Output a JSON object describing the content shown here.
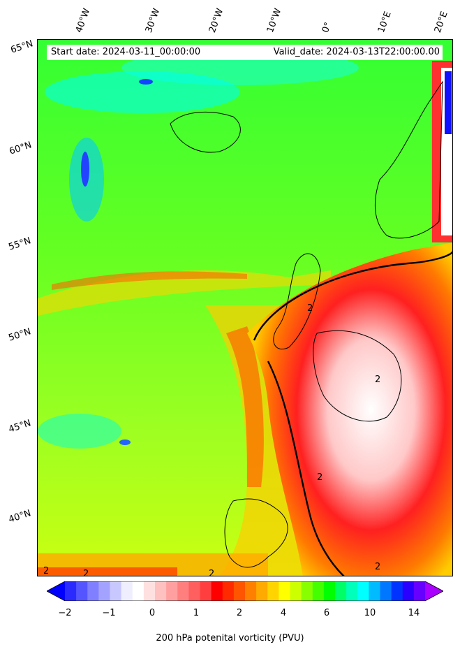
{
  "map": {
    "start_label": "Start date: 2024-03-11_00:00:00",
    "valid_label": "Valid_date: 2024-03-13T22:00:00.00",
    "longitude_labels": [
      "40°W",
      "30°W",
      "20°W",
      "10°W",
      "0°",
      "10°E",
      "20°E"
    ],
    "latitude_labels": [
      "65°N",
      "60°N",
      "55°N",
      "50°N",
      "45°N",
      "40°N"
    ],
    "contour_label": "2"
  },
  "colorbar": {
    "label": "200 hPa potenital vorticity (PVU)",
    "ticks": [
      "−2",
      "−1",
      "0",
      "1",
      "2",
      "4",
      "6",
      "10",
      "14"
    ],
    "colors": [
      "#0000ff",
      "#2a2aff",
      "#5555ff",
      "#7f7fff",
      "#a3a3ff",
      "#c8c8ff",
      "#eeeeff",
      "#ffffff",
      "#ffe0e0",
      "#ffc0c0",
      "#ff9f9f",
      "#ff7f7f",
      "#ff5f5f",
      "#ff3f3f",
      "#ff0000",
      "#ff2a00",
      "#ff5500",
      "#ff8000",
      "#ffaa00",
      "#ffd400",
      "#ffff00",
      "#ccff00",
      "#88ff00",
      "#44ff00",
      "#00ff00",
      "#00ff66",
      "#00ffbb",
      "#00ffff",
      "#00bbff",
      "#0077ff",
      "#0033ff",
      "#2a00ff",
      "#6600ff",
      "#aa00ff"
    ]
  }
}
